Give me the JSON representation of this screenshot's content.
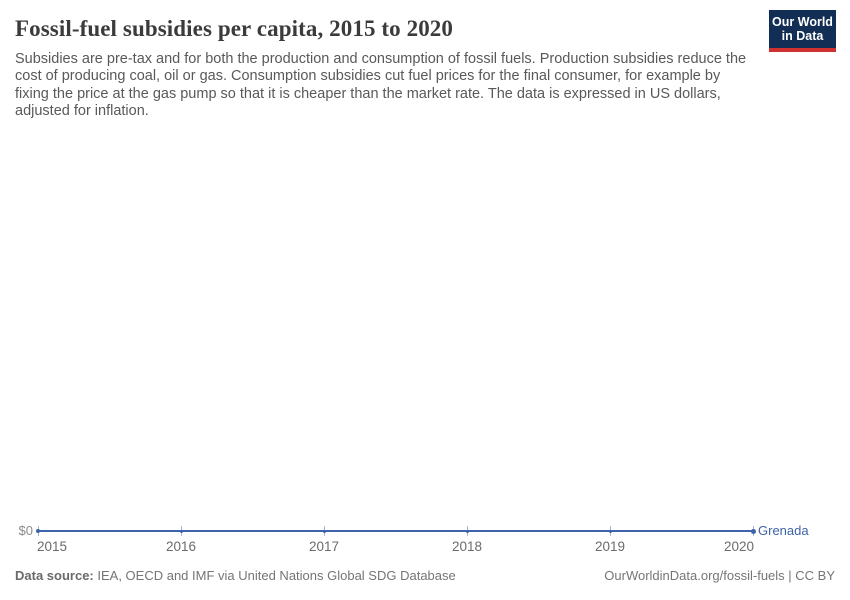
{
  "header": {
    "title": "Fossil-fuel subsidies per capita, 2015 to 2020",
    "subtitle": "Subsidies are pre-tax and for both the production and consumption of fossil fuels. Production subsidies reduce the cost of producing coal, oil or gas. Consumption subsidies cut fuel prices for the final consumer, for example by fixing the price at the gas pump so that it is cheaper than the market rate. The data is expressed in US dollars, adjusted for inflation.",
    "logo": {
      "line1": "Our World",
      "line2": "in Data",
      "bg_color": "#132e54",
      "accent_color": "#cf3130"
    }
  },
  "chart_data": {
    "type": "line",
    "title": "Fossil-fuel subsidies per capita, 2015 to 2020",
    "x": [
      2015,
      2016,
      2017,
      2018,
      2019,
      2020
    ],
    "series": [
      {
        "name": "Grenada",
        "values": [
          0,
          0,
          0,
          0,
          0,
          0
        ],
        "color": "#3d64a8"
      }
    ],
    "x_axis": {
      "tick_labels": [
        "2015",
        "2016",
        "2017",
        "2018",
        "2019",
        "2020"
      ]
    },
    "y_axis": {
      "tick_labels": [
        "$0"
      ],
      "min": 0
    },
    "ylim": [
      0,
      0
    ],
    "grid": false,
    "legend": "end-of-line-label",
    "tick_color": "#a6b5d0"
  },
  "footer": {
    "datasource_label": "Data source:",
    "datasource_text": " IEA, OECD and IMF via United Nations Global SDG Database",
    "rights": "OurWorldinData.org/fossil-fuels | CC BY"
  }
}
